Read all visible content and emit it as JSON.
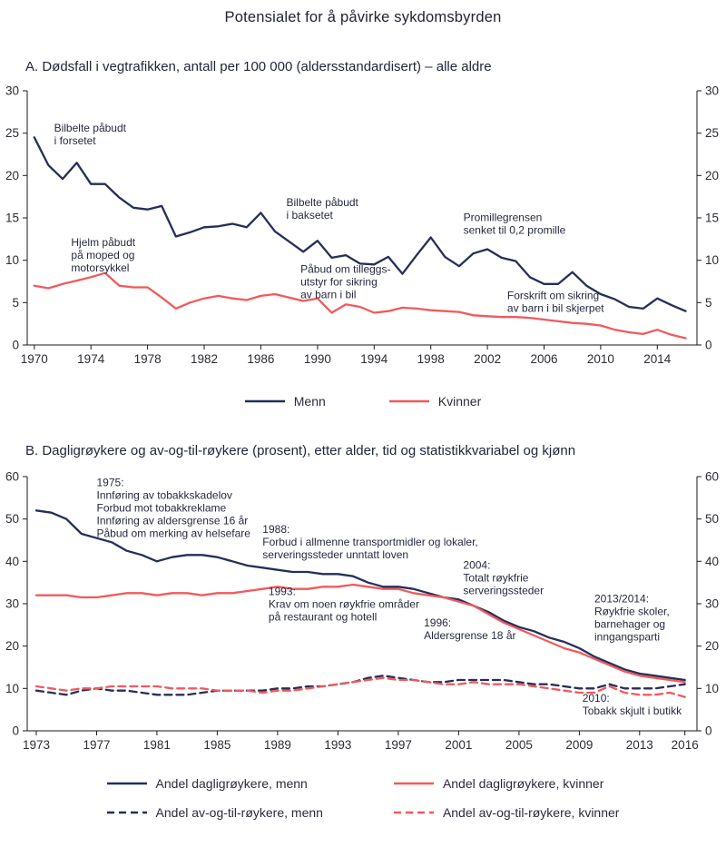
{
  "page": {
    "title": "Potensialet for å påvirke sykdomsbyrden"
  },
  "panel_a": {
    "heading": "A.  Dødsfall i vegtrafikken, antall per 100 000 (aldersstandardisert) – alle aldre"
  },
  "panel_b": {
    "heading": "B.  Dagligrøykere og av-og-til-røykere (prosent), etter alder, tid og statistikkvariabel og kjønn"
  },
  "colors": {
    "navy": "#262e58",
    "red": "#f2595c",
    "axis": "#1a1a1a",
    "text": "#262a3e"
  },
  "chart_data": [
    {
      "id": "A",
      "type": "line",
      "title": "Dødsfall i vegtrafikken, antall per 100 000 (aldersstandardisert) – alle aldre",
      "x_min": 1969.5,
      "x_max": 2016.8,
      "y_min": 0,
      "y_max": 30,
      "grid": false,
      "legend_position": "bottom",
      "y_ticks": [
        0,
        5,
        10,
        15,
        20,
        25,
        30
      ],
      "x_ticks": [
        1970,
        1974,
        1978,
        1982,
        1986,
        1990,
        1994,
        1998,
        2002,
        2006,
        2010,
        2014
      ],
      "series": [
        {
          "name": "Menn",
          "color": "#262e58",
          "dash": null,
          "x_start": 1970,
          "values": [
            24.5,
            21.2,
            19.6,
            21.5,
            19.0,
            19.0,
            17.4,
            16.2,
            16.0,
            16.4,
            12.8,
            13.3,
            13.9,
            14.0,
            14.3,
            13.9,
            15.6,
            13.4,
            12.2,
            11.0,
            12.3,
            10.3,
            10.6,
            9.6,
            9.5,
            10.4,
            8.4,
            10.6,
            12.7,
            10.4,
            9.3,
            10.8,
            11.3,
            10.3,
            9.9,
            8.0,
            7.2,
            7.2,
            8.6,
            7.0,
            6.0,
            5.4,
            4.5,
            4.3,
            5.5,
            4.7,
            4.0
          ]
        },
        {
          "name": "Kvinner",
          "color": "#f2595c",
          "dash": null,
          "x_start": 1970,
          "values": [
            7.0,
            6.7,
            7.2,
            7.6,
            8.0,
            8.5,
            7.0,
            6.8,
            6.8,
            5.6,
            4.3,
            5.0,
            5.5,
            5.8,
            5.5,
            5.3,
            5.8,
            6.0,
            5.6,
            5.2,
            5.5,
            3.8,
            4.8,
            4.5,
            3.8,
            4.0,
            4.4,
            4.3,
            4.1,
            4.0,
            3.9,
            3.5,
            3.4,
            3.3,
            3.3,
            3.2,
            3.0,
            2.8,
            2.6,
            2.5,
            2.3,
            1.8,
            1.5,
            1.3,
            1.8,
            1.2,
            0.8
          ]
        }
      ],
      "annotations": [
        {
          "x": 1971.4,
          "y": 25.2,
          "lines": [
            "Bilbelte påbudt",
            "i forsetet"
          ]
        },
        {
          "x": 1972.6,
          "y": 11.7,
          "lines": [
            "Hjelm påbudt",
            "på moped og",
            "motorsykkel"
          ]
        },
        {
          "x": 1987.8,
          "y": 16.4,
          "lines": [
            "Bilbelte påbudt",
            "i baksetet"
          ]
        },
        {
          "x": 1988.8,
          "y": 8.5,
          "lines": [
            "Påbud om tilleggs-",
            "utstyr for sikring",
            "av barn i bil"
          ]
        },
        {
          "x": 2000.3,
          "y": 14.6,
          "lines": [
            "Promillegrensen",
            "senket til 0,2 promille"
          ]
        },
        {
          "x": 2003.4,
          "y": 5.4,
          "lines": [
            "Forskrift om sikring",
            "av barn i bil skjerpet"
          ]
        }
      ]
    },
    {
      "id": "B",
      "type": "line",
      "title": "Dagligrøykere og av-og-til-røykere (prosent), etter alder, tid og statistikkvariabel og kjønn",
      "x_min": 1972.4,
      "x_max": 2016.8,
      "y_min": 0,
      "y_max": 60,
      "grid": false,
      "legend_position": "bottom",
      "y_ticks": [
        0,
        10,
        20,
        30,
        40,
        50,
        60
      ],
      "x_ticks": [
        1973,
        1977,
        1981,
        1985,
        1989,
        1993,
        1997,
        2001,
        2005,
        2009,
        2013,
        2016
      ],
      "series": [
        {
          "name": "Andel dagligrøykere, menn",
          "color": "#262e58",
          "dash": null,
          "x_start": 1973,
          "values": [
            52,
            51.5,
            50,
            46.5,
            45.5,
            44.5,
            42.5,
            41.5,
            40,
            41,
            41.5,
            41.5,
            41,
            40,
            39,
            38.5,
            38,
            37.5,
            37.5,
            37,
            37,
            36.5,
            35,
            34,
            34,
            33.5,
            32.5,
            31.5,
            31,
            29.5,
            28,
            26,
            24.5,
            23.5,
            22,
            21,
            19.5,
            17.5,
            16,
            14.5,
            13.5,
            13,
            12.5,
            12
          ]
        },
        {
          "name": "Andel dagligrøykere, kvinner",
          "color": "#f2595c",
          "dash": null,
          "x_start": 1973,
          "values": [
            32,
            32,
            32,
            31.5,
            31.5,
            32,
            32.5,
            32.5,
            32,
            32.5,
            32.5,
            32,
            32.5,
            32.5,
            33,
            33.5,
            34,
            33.5,
            33.5,
            34,
            34,
            34.5,
            34,
            33.5,
            33.5,
            32.5,
            32,
            31.5,
            30.5,
            29.5,
            27.5,
            25.5,
            24,
            22.5,
            21,
            19.5,
            18.5,
            17,
            15.5,
            14,
            13,
            12.5,
            12,
            11.5
          ]
        },
        {
          "name": "Andel av-og-til-røykere, menn",
          "color": "#262e58",
          "dash": "8 5",
          "x_start": 1973,
          "values": [
            9.5,
            9,
            8.5,
            9.5,
            10,
            9.5,
            9.5,
            9,
            8.5,
            8.5,
            8.5,
            9,
            9.5,
            9.5,
            9.5,
            9.5,
            10,
            10,
            10.5,
            10.5,
            11,
            11.5,
            12.5,
            13,
            12.5,
            12,
            11.5,
            11.5,
            12,
            12,
            12,
            12,
            11.5,
            11,
            11,
            10.5,
            10,
            10,
            11,
            10,
            10,
            10,
            10.5,
            11
          ]
        },
        {
          "name": "Andel av-og-til-røykere, kvinner",
          "color": "#f2595c",
          "dash": "8 5",
          "x_start": 1973,
          "values": [
            10.5,
            10,
            9.5,
            10,
            10,
            10.5,
            10.5,
            10.5,
            10.5,
            10,
            10,
            10,
            9.5,
            9.5,
            9.5,
            9,
            9.5,
            9.5,
            10,
            10.5,
            11,
            11.5,
            12,
            12.5,
            12,
            12,
            11.5,
            11,
            11,
            11.5,
            11,
            11,
            11,
            10.5,
            10,
            9.5,
            9,
            9,
            10.5,
            9,
            8.5,
            8.5,
            9,
            8
          ]
        }
      ],
      "annotations": [
        {
          "x": 1977.0,
          "y": 57.7,
          "lines": [
            "1975:",
            "Innføring av tobakkskadelov",
            "Forbud mot tobakkreklame",
            "Innføring av aldersgrense 16 år",
            "Påbud om merking av helsefare"
          ]
        },
        {
          "x": 1988.0,
          "y": 46.7,
          "lines": [
            "1988:",
            "Forbud i allmenne transportmidler og lokaler,",
            "serveringssteder unntatt loven"
          ]
        },
        {
          "x": 1988.4,
          "y": 32.0,
          "lines": [
            "1993:",
            "Krav om noen røykfrie områder",
            "på restaurant og hotell"
          ]
        },
        {
          "x": 1998.7,
          "y": 24.6,
          "lines": [
            "1996:",
            "Aldersgrense 18 år"
          ]
        },
        {
          "x": 2001.3,
          "y": 38.3,
          "lines": [
            "2004:",
            "Totalt røykfrie",
            "serveringssteder"
          ]
        },
        {
          "x": 2010.0,
          "y": 30.3,
          "lines": [
            "2013/2014:",
            "Røykfrie skoler,",
            "barnehager og",
            "inngangsparti"
          ]
        },
        {
          "x": 2009.2,
          "y": 6.9,
          "lines": [
            "2010:",
            "Tobakk skjult i butikk"
          ]
        }
      ]
    }
  ]
}
